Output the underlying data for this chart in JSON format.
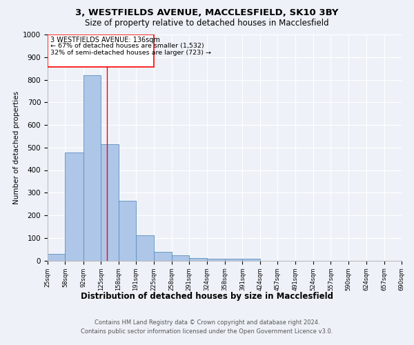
{
  "title_line1": "3, WESTFIELDS AVENUE, MACCLESFIELD, SK10 3BY",
  "title_line2": "Size of property relative to detached houses in Macclesfield",
  "xlabel": "Distribution of detached houses by size in Macclesfield",
  "ylabel": "Number of detached properties",
  "footer_line1": "Contains HM Land Registry data © Crown copyright and database right 2024.",
  "footer_line2": "Contains public sector information licensed under the Open Government Licence v3.0.",
  "annotation_line1": "3 WESTFIELDS AVENUE: 136sqm",
  "annotation_line2": "← 67% of detached houses are smaller (1,532)",
  "annotation_line3": "32% of semi-detached houses are larger (723) →",
  "bar_color": "#aec6e8",
  "bar_edge_color": "#5a8fc0",
  "red_line_x": 136,
  "bin_edges": [
    25,
    58,
    92,
    125,
    158,
    191,
    225,
    258,
    291,
    324,
    358,
    391,
    424,
    457,
    491,
    524,
    557,
    590,
    624,
    657,
    690
  ],
  "bar_heights": [
    30,
    478,
    820,
    515,
    265,
    112,
    38,
    22,
    12,
    8,
    7,
    8,
    0,
    0,
    0,
    0,
    0,
    0,
    0,
    0
  ],
  "ylim": [
    0,
    1000
  ],
  "yticks": [
    0,
    100,
    200,
    300,
    400,
    500,
    600,
    700,
    800,
    900,
    1000
  ],
  "background_color": "#eef2f8",
  "plot_background": "#eef2f8",
  "grid_color": "#ffffff"
}
